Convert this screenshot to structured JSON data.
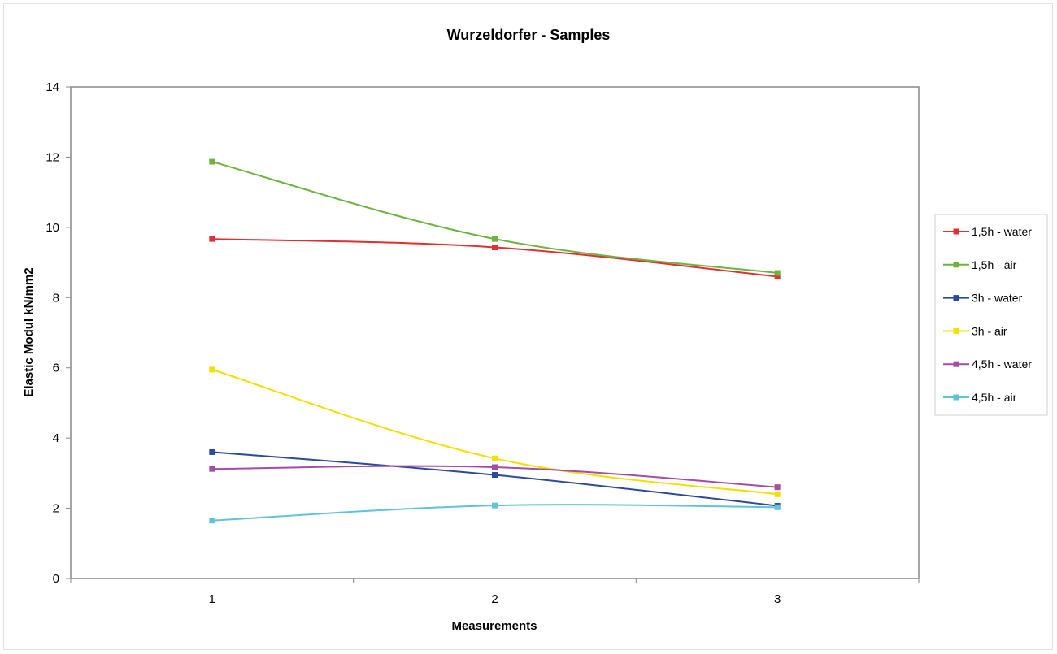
{
  "chart_data": {
    "type": "line",
    "title": "Wurzeldorfer - Samples",
    "xlabel": "Measurements",
    "ylabel": "Elastic Modul kN/mm2",
    "categories": [
      "1",
      "2",
      "3"
    ],
    "ylim": [
      0,
      14
    ],
    "yticks": [
      "0",
      "2",
      "4",
      "6",
      "8",
      "10",
      "12",
      "14"
    ],
    "grid": false,
    "legend_position": "right",
    "series": [
      {
        "name": "1,5h - water",
        "color": "#e03030",
        "values": [
          9.67,
          9.43,
          8.6
        ]
      },
      {
        "name": "1,5h - air",
        "color": "#6cb33f",
        "values": [
          11.87,
          9.67,
          8.7
        ]
      },
      {
        "name": "3h - water",
        "color": "#2b4a9b",
        "values": [
          3.6,
          2.95,
          2.07
        ]
      },
      {
        "name": "3h - air",
        "color": "#f2e000",
        "values": [
          5.95,
          3.42,
          2.4
        ]
      },
      {
        "name": "4,5h - water",
        "color": "#a64ca6",
        "values": [
          3.12,
          3.17,
          2.6
        ]
      },
      {
        "name": "4,5h - air",
        "color": "#5fc4d9",
        "values": [
          1.65,
          2.08,
          2.03
        ]
      }
    ]
  }
}
